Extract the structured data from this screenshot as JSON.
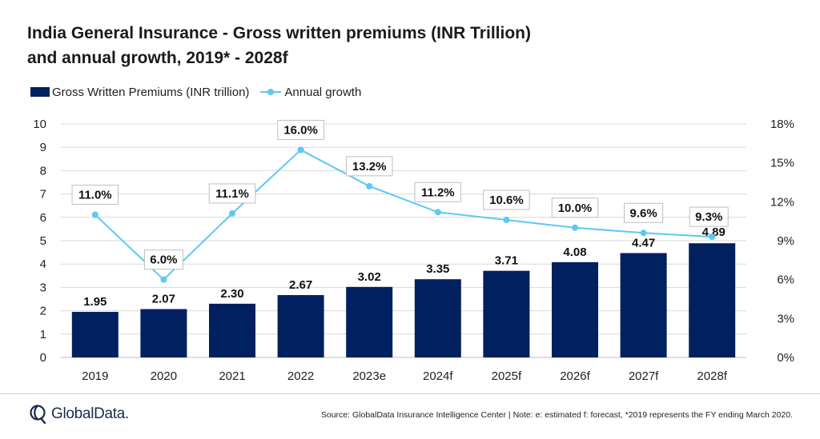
{
  "title_line1": "India General Insurance - Gross written premiums (INR Trillion)",
  "title_line2": "and annual growth, 2019* - 2028f",
  "colors": {
    "bar": "#002060",
    "line": "#5bc8f5",
    "grid": "#d9d9d9"
  },
  "chart_data": {
    "type": "bar+line",
    "categories": [
      "2019",
      "2020",
      "2021",
      "2022",
      "2023e",
      "2024f",
      "2025f",
      "2026f",
      "2027f",
      "2028f"
    ],
    "series": [
      {
        "name": "Gross Written Premiums (INR trillion)",
        "type": "bar",
        "axis": "left",
        "values": [
          1.95,
          2.07,
          2.3,
          2.67,
          3.02,
          3.35,
          3.71,
          4.08,
          4.47,
          4.89
        ],
        "labels": [
          "1.95",
          "2.07",
          "2.30",
          "2.67",
          "3.02",
          "3.35",
          "3.71",
          "4.08",
          "4.47",
          "4.89"
        ]
      },
      {
        "name": "Annual growth",
        "type": "line",
        "axis": "right",
        "values": [
          11.0,
          6.0,
          11.1,
          16.0,
          13.2,
          11.2,
          10.6,
          10.0,
          9.6,
          9.3
        ],
        "labels": [
          "11.0%",
          "6.0%",
          "11.1%",
          "16.0%",
          "13.2%",
          "11.2%",
          "10.6%",
          "10.0%",
          "9.6%",
          "9.3%"
        ]
      }
    ],
    "y_left": {
      "range": [
        0,
        10
      ],
      "ticks": [
        "0",
        "1",
        "2",
        "3",
        "4",
        "5",
        "6",
        "7",
        "8",
        "9",
        "10"
      ]
    },
    "y_right": {
      "range": [
        0,
        18
      ],
      "ticks": [
        "0%",
        "3%",
        "6%",
        "9%",
        "12%",
        "15%",
        "18%"
      ]
    },
    "grid": true,
    "legend_position": "top-left"
  },
  "source_text": "Source: GlobalData Insurance Intelligence Center | Note: e: estimated f: forecast, *2019 represents the FY ending March 2020.",
  "logo_text": "GlobalData."
}
